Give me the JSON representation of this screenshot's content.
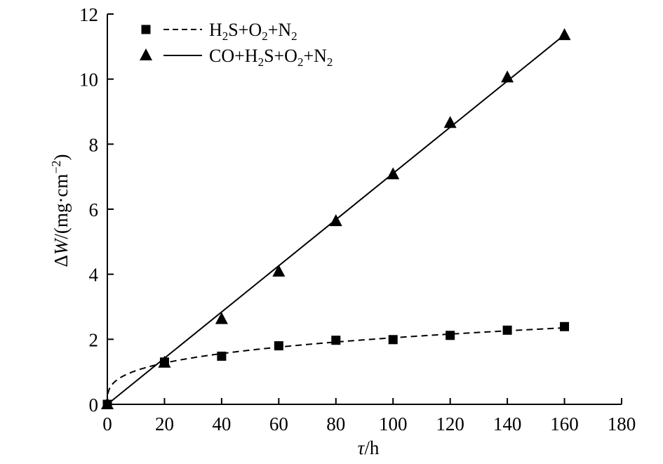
{
  "chart_data": {
    "type": "scatter",
    "xlabel": {
      "symbol": "τ",
      "unit": "/h"
    },
    "ylabel": {
      "prefix": "Δ",
      "symbol": "W",
      "unit": "/(mg·cm",
      "exp": "−2",
      "close": ")"
    },
    "xlim": [
      0,
      180
    ],
    "ylim": [
      0,
      12
    ],
    "xticks": [
      "0",
      "20",
      "40",
      "60",
      "80",
      "100",
      "120",
      "140",
      "160",
      "180"
    ],
    "yticks": [
      "0",
      "2",
      "4",
      "6",
      "8",
      "10",
      "12"
    ],
    "legend_position": "top-left",
    "series": [
      {
        "name": "H2S+O2+N2",
        "legend_parts": [
          {
            "t": "H",
            "sub": false
          },
          {
            "t": "2",
            "sub": true
          },
          {
            "t": "S+O",
            "sub": false
          },
          {
            "t": "2",
            "sub": true
          },
          {
            "t": "+N",
            "sub": false
          },
          {
            "t": "2",
            "sub": true
          }
        ],
        "marker": "square",
        "line_style": "dashed",
        "color": "#000000",
        "x": [
          0,
          20,
          40,
          60,
          80,
          100,
          120,
          140,
          160
        ],
        "y": [
          0,
          1.3,
          1.48,
          1.8,
          1.97,
          1.99,
          2.12,
          2.28,
          2.39
        ]
      },
      {
        "name": "CO+H2S+O2+N2",
        "legend_parts": [
          {
            "t": "CO+H",
            "sub": false
          },
          {
            "t": "2",
            "sub": true
          },
          {
            "t": "S+O",
            "sub": false
          },
          {
            "t": "2",
            "sub": true
          },
          {
            "t": "+N",
            "sub": false
          },
          {
            "t": "2",
            "sub": true
          }
        ],
        "marker": "triangle",
        "line_style": "solid",
        "color": "#000000",
        "x": [
          0,
          20,
          40,
          60,
          80,
          100,
          120,
          140,
          160
        ],
        "y": [
          0,
          1.28,
          2.62,
          4.08,
          5.63,
          7.07,
          8.65,
          10.05,
          11.35
        ]
      }
    ]
  }
}
